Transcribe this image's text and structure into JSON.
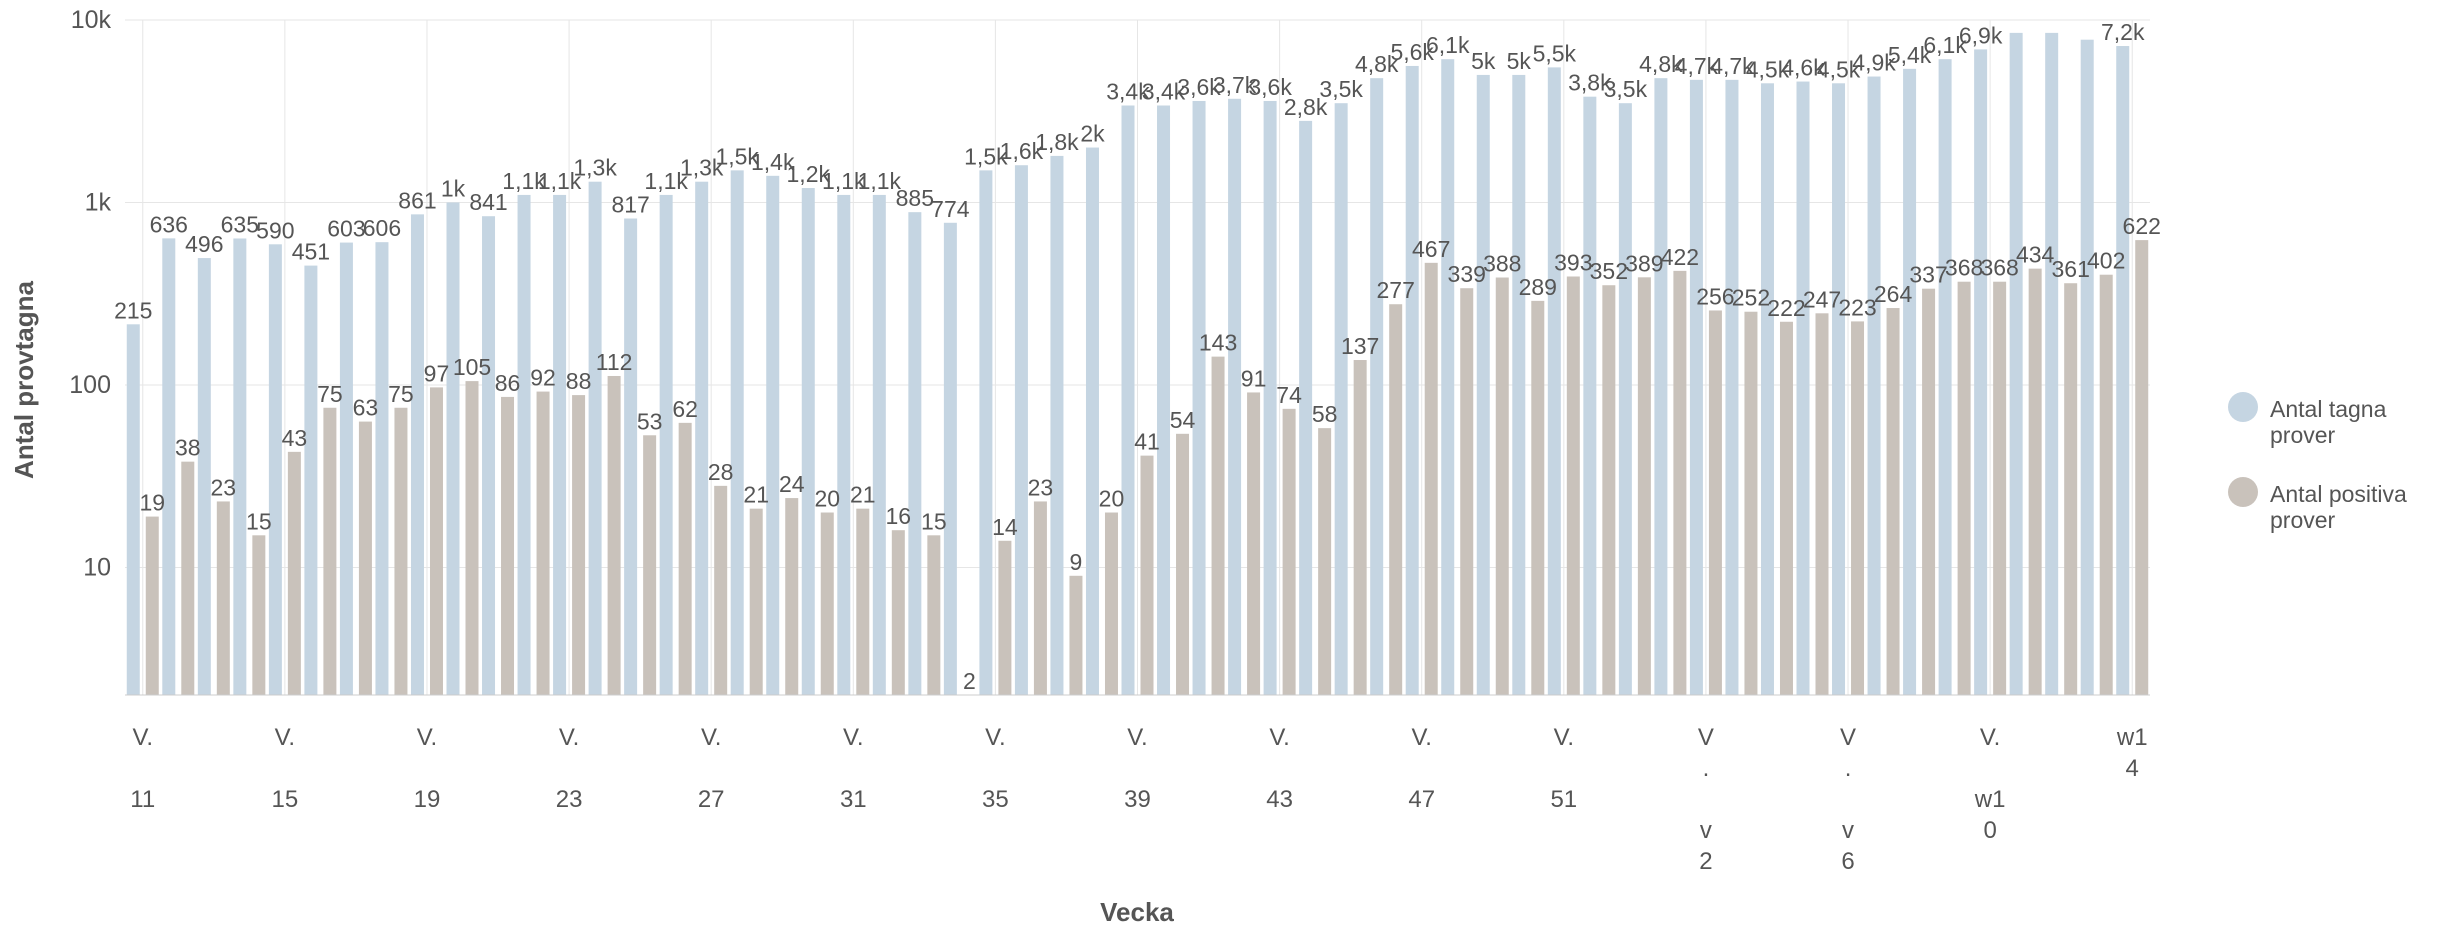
{
  "chart_data": {
    "type": "bar",
    "log_scale": true,
    "ylim": [
      2,
      10000
    ],
    "yticks": [
      {
        "value": 10,
        "label": "10"
      },
      {
        "value": 100,
        "label": "100"
      },
      {
        "value": 1000,
        "label": "1k"
      },
      {
        "value": 10000,
        "label": "10k"
      }
    ],
    "xlabel": "Vecka",
    "ylabel": "Antal provtagna",
    "grid": true,
    "legend_position": "right",
    "x_tick_labels": [
      {
        "index": 0,
        "label": "V.\n\n11"
      },
      {
        "index": 4,
        "label": "V.\n\n15"
      },
      {
        "index": 8,
        "label": "V.\n\n19"
      },
      {
        "index": 12,
        "label": "V.\n\n23"
      },
      {
        "index": 16,
        "label": "V.\n\n27"
      },
      {
        "index": 20,
        "label": "V.\n\n31"
      },
      {
        "index": 24,
        "label": "V.\n\n35"
      },
      {
        "index": 28,
        "label": "V.\n\n39"
      },
      {
        "index": 32,
        "label": "V.\n\n43"
      },
      {
        "index": 36,
        "label": "V.\n\n47"
      },
      {
        "index": 40,
        "label": "V.\n\n51"
      },
      {
        "index": 44,
        "label": "V\n.\n\nv\n2"
      },
      {
        "index": 48,
        "label": "V\n.\n\nv\n6"
      },
      {
        "index": 52,
        "label": "V.\n\nw1\n0"
      },
      {
        "index": 56,
        "label": "w1\n4"
      }
    ],
    "series": [
      {
        "name": "Antal tagna prover",
        "color": "#c5d5e2",
        "values": [
          215,
          636,
          496,
          635,
          590,
          451,
          603,
          606,
          861,
          1000,
          841,
          1100,
          1100,
          1300,
          817,
          1100,
          1300,
          1500,
          1400,
          1200,
          1100,
          1100,
          885,
          774,
          1500,
          1600,
          1800,
          2000,
          3400,
          3400,
          3600,
          3700,
          3600,
          2800,
          3500,
          4800,
          5600,
          6100,
          5000,
          5000,
          5500,
          3800,
          3500,
          4800,
          4700,
          4700,
          4500,
          4600,
          4500,
          4900,
          5400,
          6100,
          6900,
          8500,
          8500,
          7800,
          7200
        ],
        "labels": [
          "215",
          "636",
          "496",
          "635",
          "590",
          "451",
          "603",
          "606",
          "861",
          "1k",
          "841",
          "1,1k",
          "1,1k",
          "1,3k",
          "817",
          "1,1k",
          "1,3k",
          "1,5k",
          "1,4k",
          "1,2k",
          "1,1k",
          "1,1k",
          "885",
          "774",
          "1,5k",
          "1,6k",
          "1,8k",
          "2k",
          "3,4k",
          "3,4k",
          "3,6k",
          "3,7k",
          "3,6k",
          "2,8k",
          "3,5k",
          "4,8k",
          "5,6k",
          "6,1k",
          "5k",
          "5k",
          "5,5k",
          "3,8k",
          "3,5k",
          "4,8k",
          "4,7k",
          "4,7k",
          "4,5k",
          "4,6k",
          "4,5k",
          "4,9k",
          "5,4k",
          "6,1k",
          "6,9k",
          "",
          "",
          "",
          "7,2k"
        ]
      },
      {
        "name": "Antal positiva prover",
        "color": "#c9c2bb",
        "values": [
          19,
          38,
          23,
          15,
          43,
          75,
          63,
          75,
          97,
          105,
          86,
          92,
          88,
          112,
          53,
          62,
          28,
          21,
          24,
          20,
          21,
          16,
          15,
          2,
          14,
          23,
          9,
          20,
          41,
          54,
          143,
          91,
          74,
          58,
          137,
          277,
          467,
          339,
          388,
          289,
          393,
          352,
          389,
          422,
          256,
          252,
          222,
          247,
          223,
          264,
          337,
          368,
          368,
          434,
          361,
          402,
          622
        ],
        "labels": [
          "19",
          "38",
          "23",
          "15",
          "43",
          "75",
          "63",
          "75",
          "97",
          "105",
          "86",
          "92",
          "88",
          "112",
          "53",
          "62",
          "28",
          "21",
          "24",
          "20",
          "21",
          "16",
          "15",
          "2",
          "14",
          "23",
          "9",
          "20",
          "41",
          "54",
          "143",
          "91",
          "74",
          "58",
          "137",
          "277",
          "467",
          "339",
          "388",
          "289",
          "393",
          "352",
          "389",
          "422",
          "256",
          "252",
          "222",
          "247",
          "223",
          "264",
          "337",
          "368",
          "368",
          "434",
          "361",
          "402",
          "622"
        ]
      }
    ]
  }
}
